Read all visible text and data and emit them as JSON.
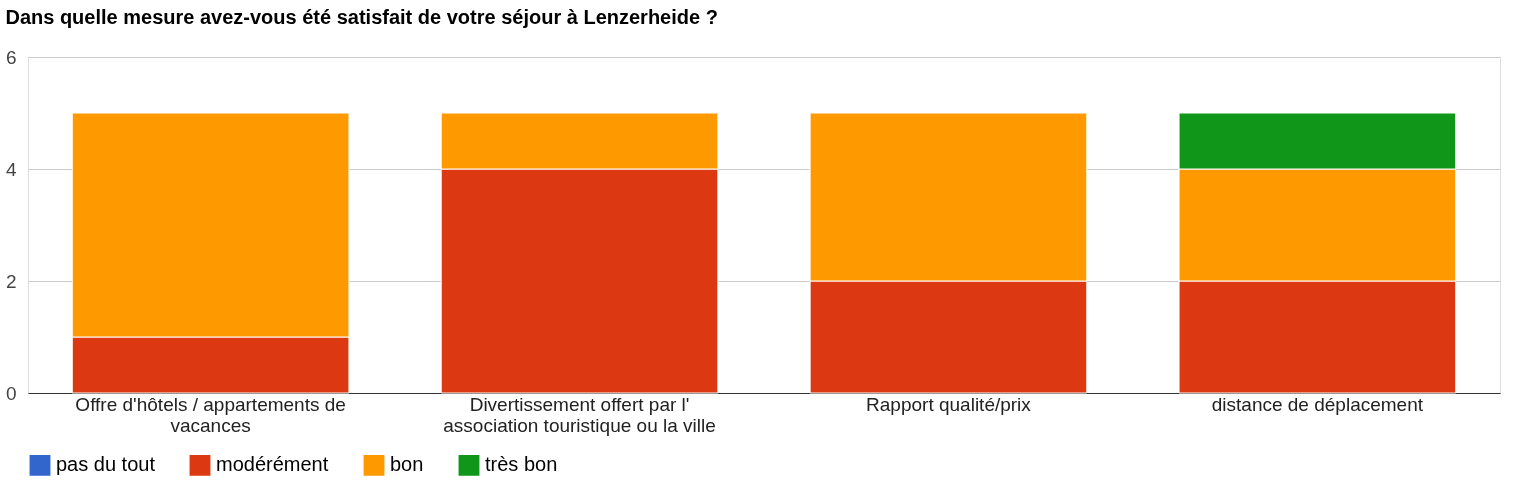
{
  "chart_data": {
    "type": "bar",
    "title": "Dans quelle mesure avez-vous été satisfait de votre séjour à Lenzerheide ?",
    "categories": [
      "Offre d'hôtels / appartements de vacances",
      "Divertissement offert par l' association touristique ou la ville",
      "Rapport qualité/prix",
      "distance de déplacement"
    ],
    "stacked": true,
    "ylim": [
      0,
      6
    ],
    "yticks": [
      0,
      2,
      4,
      6
    ],
    "grid": "y",
    "legend": "bottom",
    "series": [
      {
        "name": "pas du tout",
        "color": "#3366cc",
        "values": [
          0,
          0,
          0,
          0
        ]
      },
      {
        "name": "modérément",
        "color": "#dc3912",
        "values": [
          1,
          4,
          2,
          2
        ]
      },
      {
        "name": "bon",
        "color": "#ff9900",
        "values": [
          4,
          1,
          3,
          2
        ]
      },
      {
        "name": "très bon",
        "color": "#109618",
        "values": [
          0,
          0,
          0,
          1
        ]
      }
    ]
  }
}
